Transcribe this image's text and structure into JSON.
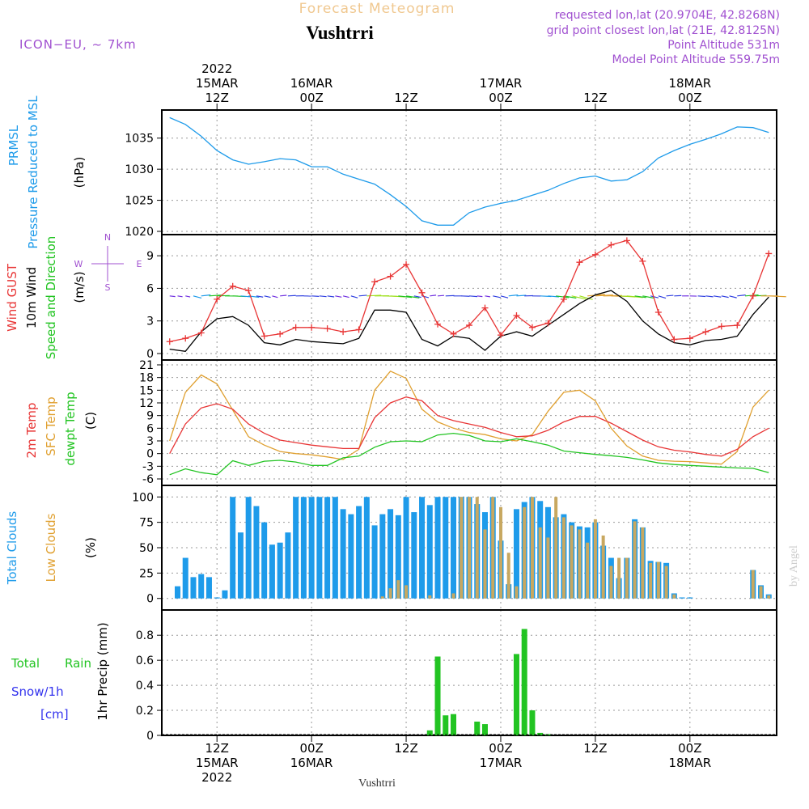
{
  "header": {
    "app_title": "Forecast Meteogram",
    "location": "Vushtrri",
    "model": "ICON−EU, ~ 7km",
    "requested": "requested lon,lat (20.9704E, 42.8268N)",
    "grid_point": "grid point closest lon,lat (21E, 42.8125N)",
    "point_altitude": "Point Altitude 531m",
    "model_altitude": "Model Point Altitude 559.75m",
    "watermark": "by Angel",
    "footer_location": "Vushtrri"
  },
  "colors": {
    "pressure": "#1e9bea",
    "gust": "#e83535",
    "wind": "#000000",
    "sfc_temp": "#e0a030",
    "dewpt": "#22c422",
    "total_clouds": "#1e9bea",
    "low_clouds": "#c8a860",
    "rain": "#22c422",
    "snow": "#3333ee",
    "title": "#f0c890",
    "meta": "#a050d0"
  },
  "time_axis": {
    "top_year": "2022",
    "ticks": [
      {
        "hour": 12,
        "top": [
          "15MAR",
          "12Z"
        ],
        "bottom": [
          "12Z",
          "15MAR",
          "2022"
        ]
      },
      {
        "hour": 24,
        "top": [
          "16MAR",
          "00Z"
        ],
        "bottom": [
          "00Z",
          "16MAR"
        ]
      },
      {
        "hour": 36,
        "top": [
          "12Z"
        ],
        "bottom": [
          "12Z"
        ]
      },
      {
        "hour": 48,
        "top": [
          "17MAR",
          "00Z"
        ],
        "bottom": [
          "00Z",
          "17MAR"
        ]
      },
      {
        "hour": 60,
        "top": [
          "12Z"
        ],
        "bottom": [
          "12Z"
        ]
      },
      {
        "hour": 72,
        "top": [
          "18MAR",
          "00Z"
        ],
        "bottom": [
          "00Z",
          "18MAR"
        ]
      }
    ]
  },
  "chart_data": [
    {
      "type": "line",
      "panel": "pressure",
      "ylabel_left": [
        "PRMSL",
        "Pressure Reduced to MSL"
      ],
      "ylabel_unit": "(hPa)",
      "ylim": [
        1020,
        1039
      ],
      "yticks": [
        "1020",
        "1025",
        "1030",
        "1035"
      ],
      "ytick_values": [
        1020,
        1025,
        1030,
        1035
      ],
      "x_hours": [
        6,
        8,
        10,
        12,
        14,
        16,
        18,
        20,
        22,
        24,
        26,
        28,
        30,
        32,
        34,
        36,
        38,
        40,
        42,
        44,
        46,
        48,
        50,
        52,
        54,
        56,
        58,
        60,
        62,
        64,
        66,
        68,
        70,
        72,
        74,
        76,
        78,
        80,
        82
      ],
      "series": [
        {
          "key": "pressure",
          "values": [
            1038.3,
            1037.2,
            1035.3,
            1033.0,
            1031.5,
            1030.8,
            1031.2,
            1031.7,
            1031.5,
            1030.4,
            1030.4,
            1029.2,
            1028.4,
            1027.6,
            1025.9,
            1024.0,
            1021.7,
            1021.0,
            1021.0,
            1023.0,
            1023.9,
            1024.5,
            1025.0,
            1025.8,
            1026.6,
            1027.7,
            1028.6,
            1028.9,
            1028.1,
            1028.3,
            1029.6,
            1031.8,
            1033.0,
            1034.0,
            1034.8,
            1035.7,
            1036.8,
            1036.7,
            1035.9
          ]
        }
      ]
    },
    {
      "type": "line",
      "panel": "wind",
      "ylabel_left": [
        "Wind GUST",
        "10m Wind",
        "Speed and Direction"
      ],
      "ylabel_unit": "(m/s)",
      "compass": {
        "n": "N",
        "s": "S",
        "e": "E",
        "w": "W"
      },
      "ylim": [
        0,
        10.5
      ],
      "yticks": [
        "0",
        "3",
        "6",
        "9"
      ],
      "ytick_values": [
        0,
        3,
        6,
        9
      ],
      "x_hours": [
        6,
        8,
        10,
        12,
        14,
        16,
        18,
        20,
        22,
        24,
        26,
        28,
        30,
        32,
        34,
        36,
        38,
        40,
        42,
        44,
        46,
        48,
        50,
        52,
        54,
        56,
        58,
        60,
        62,
        64,
        66,
        68,
        70,
        72,
        74,
        76,
        78,
        80,
        82
      ],
      "series": [
        {
          "key": "gust",
          "values": [
            1.1,
            1.4,
            1.9,
            5.0,
            6.2,
            5.8,
            1.6,
            1.8,
            2.4,
            2.4,
            2.3,
            2.0,
            2.2,
            6.6,
            7.1,
            8.2,
            5.6,
            2.7,
            1.8,
            2.6,
            4.2,
            1.7,
            3.5,
            2.4,
            2.8,
            5.0,
            8.4,
            9.1,
            10.0,
            10.4,
            8.5,
            3.8,
            1.3,
            1.4,
            2.0,
            2.5,
            2.6,
            5.3,
            9.2
          ]
        },
        {
          "key": "wind",
          "values": [
            0.4,
            0.2,
            2.0,
            3.2,
            3.4,
            2.6,
            1.0,
            0.8,
            1.3,
            1.1,
            1.0,
            0.9,
            1.4,
            4.0,
            4.0,
            3.8,
            1.3,
            0.7,
            1.6,
            1.4,
            0.3,
            1.6,
            2.0,
            1.6,
            2.6,
            3.6,
            4.6,
            5.4,
            5.8,
            4.8,
            3.0,
            1.8,
            1.0,
            0.8,
            1.2,
            1.3,
            1.6,
            3.6,
            5.2
          ]
        }
      ],
      "wind_arrows": {
        "y": 5.3,
        "every_hours": 1
      }
    },
    {
      "type": "line",
      "panel": "temperature",
      "ylabel_left": [
        "2m Temp",
        "SFC Temp",
        "dewpt Temp"
      ],
      "ylabel_unit": "(C)",
      "ylim": [
        -6,
        21
      ],
      "yticks": [
        "-6",
        "-3",
        "0",
        "3",
        "6",
        "9",
        "12",
        "15",
        "18",
        "21"
      ],
      "ytick_values": [
        -6,
        -3,
        0,
        3,
        6,
        9,
        12,
        15,
        18,
        21
      ],
      "x_hours": [
        6,
        8,
        10,
        12,
        14,
        16,
        18,
        20,
        22,
        24,
        26,
        28,
        30,
        32,
        34,
        36,
        38,
        40,
        42,
        44,
        46,
        48,
        50,
        52,
        54,
        56,
        58,
        60,
        62,
        64,
        66,
        68,
        70,
        72,
        74,
        76,
        78,
        80,
        82
      ],
      "series": [
        {
          "key": "t2m",
          "values": [
            0,
            7,
            10.8,
            11.8,
            10.5,
            7.0,
            4.8,
            3.2,
            2.6,
            2.0,
            1.6,
            1.2,
            1.2,
            8.5,
            12.0,
            13.4,
            12.5,
            9.0,
            7.8,
            7.0,
            6.2,
            5.0,
            4.0,
            4.2,
            5.5,
            7.5,
            8.8,
            8.8,
            7.2,
            5.2,
            3.2,
            1.6,
            0.8,
            0.4,
            -0.2,
            -0.6,
            1.0,
            4.0,
            6.0
          ]
        },
        {
          "key": "sfc",
          "values": [
            3,
            14.5,
            18.6,
            16.5,
            10.3,
            4.0,
            2.0,
            0.5,
            0,
            -0.3,
            -0.8,
            -1.4,
            1.0,
            15.0,
            19.5,
            17.8,
            10.5,
            7.5,
            6.0,
            5.0,
            4.5,
            3.5,
            3.0,
            4.5,
            10.0,
            14.5,
            15.0,
            12.5,
            6.0,
            1.8,
            -0.6,
            -1.6,
            -1.8,
            -1.9,
            -2.2,
            -2.5,
            0.5,
            11.0,
            15.0
          ]
        },
        {
          "key": "dew",
          "values": [
            -5,
            -3.6,
            -4.5,
            -5.0,
            -1.7,
            -2.8,
            -1.8,
            -1.6,
            -2.0,
            -2.8,
            -2.8,
            -1.0,
            -0.6,
            1.5,
            2.8,
            3.0,
            2.8,
            4.4,
            4.8,
            4.3,
            3.0,
            2.8,
            3.5,
            2.8,
            2.0,
            0.6,
            0.2,
            -0.2,
            -0.5,
            -0.9,
            -1.5,
            -2.2,
            -2.6,
            -2.8,
            -3.0,
            -3.2,
            -3.4,
            -3.5,
            -4.5
          ]
        }
      ]
    },
    {
      "type": "bar",
      "panel": "clouds",
      "ylabel_left": [
        "Total Clouds",
        "Low Clouds"
      ],
      "ylabel_unit": "(%)",
      "ylim": [
        -5,
        105
      ],
      "yticks": [
        "0",
        "25",
        "50",
        "75",
        "100"
      ],
      "ytick_values": [
        0,
        25,
        50,
        75,
        100
      ],
      "x_hours": [
        7,
        8,
        9,
        10,
        11,
        12,
        13,
        14,
        15,
        16,
        17,
        18,
        19,
        20,
        21,
        22,
        23,
        24,
        25,
        26,
        27,
        28,
        29,
        30,
        31,
        32,
        33,
        34,
        35,
        36,
        37,
        38,
        39,
        40,
        41,
        42,
        43,
        44,
        45,
        46,
        47,
        48,
        49,
        50,
        51,
        52,
        53,
        54,
        55,
        56,
        57,
        58,
        59,
        60,
        61,
        62,
        63,
        64,
        65,
        66,
        67,
        68,
        69,
        70,
        71,
        72,
        73,
        74,
        75,
        76,
        77,
        78,
        79,
        80,
        81,
        82
      ],
      "series": [
        {
          "key": "total",
          "values": [
            12,
            40,
            21,
            24,
            21,
            1,
            8,
            100,
            65,
            100,
            91,
            75,
            53,
            55,
            65,
            100,
            100,
            100,
            100,
            100,
            100,
            88,
            83,
            91,
            100,
            72,
            83,
            88,
            82,
            100,
            85,
            100,
            92,
            100,
            100,
            100,
            100,
            100,
            93,
            85,
            100,
            57,
            14,
            88,
            95,
            100,
            96,
            90,
            80,
            83,
            75,
            71,
            70,
            75,
            52,
            40,
            20,
            40,
            78,
            70,
            37,
            36,
            35,
            5,
            1,
            1,
            0,
            0,
            0,
            0,
            0,
            0,
            0,
            28,
            13,
            4
          ]
        },
        {
          "key": "low",
          "values": [
            0,
            0,
            0,
            0,
            0,
            0,
            0,
            0,
            0,
            0,
            0,
            0,
            0,
            0,
            0,
            0,
            0,
            0,
            0,
            0,
            0,
            0,
            0,
            0,
            0,
            0,
            2,
            10,
            18,
            13,
            0,
            0,
            3,
            0,
            0,
            5,
            100,
            100,
            100,
            68,
            100,
            90,
            45,
            12,
            90,
            100,
            70,
            60,
            100,
            80,
            72,
            68,
            55,
            78,
            62,
            32,
            40,
            40,
            76,
            70,
            35,
            36,
            32,
            4,
            0,
            0,
            0,
            0,
            0,
            0,
            0,
            0,
            0,
            28,
            12,
            3
          ]
        }
      ]
    },
    {
      "type": "bar",
      "panel": "precip",
      "ylabel_left": [
        "Total",
        "Rain",
        "Snow/1h",
        "[cm]"
      ],
      "ylabel_unit": "1hr Precip (mm)",
      "ylim": [
        0,
        0.95
      ],
      "yticks": [
        "0",
        "0.2",
        "0.4",
        "0.6",
        "0.8"
      ],
      "ytick_values": [
        0,
        0.2,
        0.4,
        0.6,
        0.8
      ],
      "x_hours": [
        39,
        40,
        41,
        42,
        43,
        45,
        46,
        50,
        51,
        52,
        53,
        54
      ],
      "series": [
        {
          "key": "rain",
          "values": [
            0.04,
            0.63,
            0.16,
            0.17,
            0.0,
            0.11,
            0.09,
            0.65,
            0.85,
            0.2,
            0.02,
            0.01
          ]
        }
      ]
    }
  ]
}
